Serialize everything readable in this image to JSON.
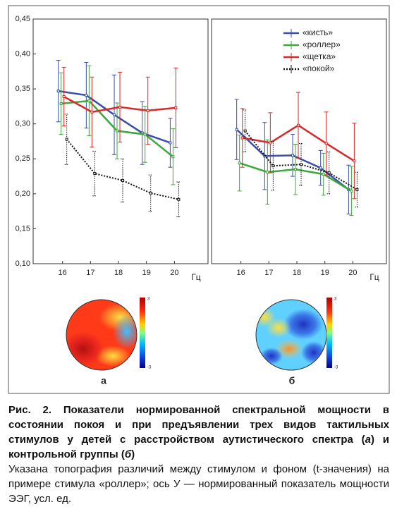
{
  "chart_data": [
    {
      "type": "line",
      "x": [
        16,
        17,
        18,
        19,
        20
      ],
      "xlim": [
        14.95,
        21.2
      ],
      "xticks": [
        16,
        17,
        18,
        19,
        20
      ],
      "x_label": "Гц",
      "ylim": [
        0.1,
        0.45
      ],
      "yticks": [
        {
          "value": 0.1,
          "label": "0,10"
        },
        {
          "value": 0.15,
          "label": "0,15"
        },
        {
          "value": 0.2,
          "label": "0,20"
        },
        {
          "value": 0.25,
          "label": "0,25"
        },
        {
          "value": 0.3,
          "label": "0,30"
        },
        {
          "value": 0.35,
          "label": "0,35"
        },
        {
          "value": 0.4,
          "label": "0,40"
        },
        {
          "value": 0.45,
          "label": "0,45"
        }
      ],
      "series": [
        {
          "color": "#3a4fa8",
          "line_style": "solid",
          "values": [
            0.347,
            0.341,
            0.313,
            0.287,
            0.273
          ],
          "errors": [
            0.044,
            0.047,
            0.057,
            0.045,
            0.035
          ]
        },
        {
          "color": "#3aa83a",
          "line_style": "solid",
          "values": [
            0.329,
            0.333,
            0.29,
            0.285,
            0.253
          ],
          "errors": [
            0.044,
            0.05,
            0.04,
            0.04,
            0.04
          ]
        },
        {
          "color": "#d82828",
          "line_style": "solid",
          "values": [
            0.339,
            0.317,
            0.324,
            0.319,
            0.323
          ],
          "errors": [
            0.042,
            0.05,
            0.05,
            0.048,
            0.057
          ]
        },
        {
          "color": "#111111",
          "line_style": "dotted",
          "values": [
            0.278,
            0.229,
            0.219,
            0.201,
            0.192
          ],
          "errors": [
            0.036,
            0.032,
            0.031,
            0.026,
            0.025
          ]
        }
      ]
    },
    {
      "type": "line",
      "x": [
        16,
        17,
        18,
        19,
        20
      ],
      "xlim": [
        14.95,
        21.2
      ],
      "xticks": [
        16,
        17,
        18,
        19,
        20
      ],
      "x_label": "Гц",
      "ylim": [
        0.1,
        0.45
      ],
      "legend": "upper right",
      "series": [
        {
          "name": "«кисть»",
          "color": "#3a4fa8",
          "line_style": "solid",
          "values": [
            0.292,
            0.254,
            0.255,
            0.237,
            0.206
          ],
          "errors": [
            0.043,
            0.048,
            0.03,
            0.025,
            0.035
          ]
        },
        {
          "name": "«роллер»",
          "color": "#3aa83a",
          "line_style": "solid",
          "values": [
            0.244,
            0.231,
            0.235,
            0.228,
            0.204
          ],
          "errors": [
            0.04,
            0.046,
            0.036,
            0.03,
            0.035
          ]
        },
        {
          "name": "«щетка»",
          "color": "#d82828",
          "line_style": "solid",
          "values": [
            0.28,
            0.273,
            0.298,
            0.272,
            0.247
          ],
          "errors": [
            0.042,
            0.043,
            0.047,
            0.045,
            0.054
          ]
        },
        {
          "name": "«покой»",
          "color": "#111111",
          "line_style": "dotted",
          "values": [
            0.29,
            0.24,
            0.242,
            0.23,
            0.206
          ],
          "errors": [
            0.03,
            0.035,
            0.03,
            0.03,
            0.025
          ]
        }
      ]
    }
  ],
  "topomaps": [
    {
      "label": "а",
      "scale_max": "3",
      "scale_min": "-3"
    },
    {
      "label": "б",
      "scale_max": "3",
      "scale_min": "-3"
    }
  ],
  "caption": {
    "title_parts": [
      "Рис. 2. Показатели нормированной спектральной мощности в состоянии покоя и при предъявлении трех видов тактильных стимулов у детей с расстройством аутистического спектра (",
      "а",
      ") и контрольной группы (",
      "б",
      ")"
    ],
    "text": "Указана топография различий между стимулом и фоном (t-значения) на примере стимула «роллер»; ось У — нормированный показатель мощности ЭЭГ, усл. ед."
  }
}
